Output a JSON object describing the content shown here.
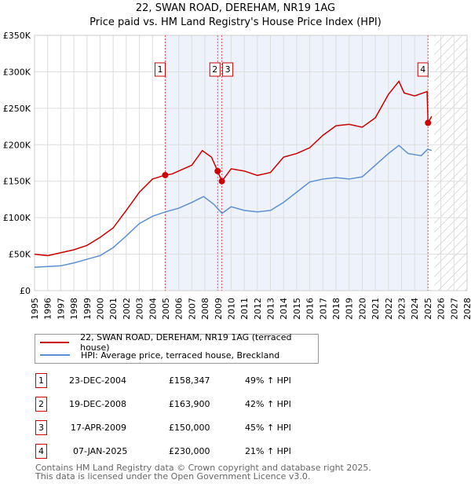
{
  "title": "22, SWAN ROAD, DEREHAM, NR19 1AG",
  "subtitle": "Price paid vs. HM Land Registry's House Price Index (HPI)",
  "chart_data": {
    "type": "line",
    "xlim": [
      1995,
      2028
    ],
    "ylim": [
      0,
      350000
    ],
    "yticks": [
      0,
      50000,
      100000,
      150000,
      200000,
      250000,
      300000,
      350000
    ],
    "ytick_labels": [
      "£0",
      "£50K",
      "£100K",
      "£150K",
      "£200K",
      "£250K",
      "£300K",
      "£350K"
    ],
    "xticks": [
      1995,
      1996,
      1997,
      1998,
      1999,
      2000,
      2001,
      2002,
      2003,
      2004,
      2005,
      2006,
      2007,
      2008,
      2009,
      2010,
      2011,
      2012,
      2013,
      2014,
      2015,
      2016,
      2017,
      2018,
      2019,
      2020,
      2021,
      2022,
      2023,
      2024,
      2025,
      2026,
      2027,
      2028
    ],
    "forecast_start": 2025.5,
    "colors": {
      "property": "#cc0000",
      "hpi": "#5b8fd4",
      "shade": "#eef2fb"
    },
    "series": [
      {
        "name": "22, SWAN ROAD, DEREHAM, NR19 1AG (terraced house)",
        "color": "#cc0000",
        "x": [
          1995,
          1996,
          1997,
          1998,
          1999,
          2000,
          2001,
          2002,
          2003,
          2004,
          2004.97,
          2005.5,
          2006,
          2007,
          2007.8,
          2008.5,
          2008.97,
          2009.29,
          2009.5,
          2010,
          2011,
          2012,
          2013,
          2014,
          2015,
          2016,
          2017,
          2018,
          2019,
          2020,
          2021,
          2022,
          2022.8,
          2023.2,
          2024,
          2024.95,
          2025.02,
          2025.3
        ],
        "y": [
          50000,
          48000,
          52000,
          56000,
          62000,
          73000,
          86000,
          110000,
          135000,
          153000,
          158347,
          160000,
          164000,
          172000,
          192000,
          183000,
          163900,
          150000,
          155000,
          167000,
          164000,
          158000,
          162000,
          183000,
          188000,
          196000,
          213000,
          226000,
          228000,
          224000,
          237000,
          269000,
          287000,
          271000,
          267000,
          273000,
          230000,
          239000
        ]
      },
      {
        "name": "HPI: Average price, terraced house, Breckland",
        "color": "#5b8fd4",
        "x": [
          1995,
          1997,
          1998,
          1999,
          2000,
          2001,
          2002,
          2003,
          2004,
          2005,
          2006,
          2007,
          2007.9,
          2008.7,
          2009.3,
          2010,
          2011,
          2012,
          2013,
          2014,
          2015,
          2016,
          2017,
          2018,
          2019,
          2020,
          2021,
          2022,
          2022.8,
          2023.5,
          2024.5,
          2025,
          2025.3
        ],
        "y": [
          32000,
          34000,
          38000,
          43000,
          48000,
          59000,
          75000,
          92000,
          102000,
          108000,
          113000,
          121000,
          129000,
          118000,
          106000,
          115000,
          110000,
          108000,
          110000,
          121000,
          135000,
          149000,
          153000,
          155000,
          153000,
          156000,
          172000,
          188000,
          199000,
          188000,
          185000,
          194000,
          192000
        ]
      }
    ],
    "sales": [
      {
        "n": "1",
        "x": 2004.97,
        "price": 158347,
        "date": "23-DEC-2004",
        "price_label": "£158,347",
        "hpi": "49% ↑ HPI"
      },
      {
        "n": "2",
        "x": 2008.97,
        "price": 163900,
        "date": "19-DEC-2008",
        "price_label": "£163,900",
        "hpi": "42% ↑ HPI"
      },
      {
        "n": "3",
        "x": 2009.29,
        "price": 150000,
        "date": "17-APR-2009",
        "price_label": "£150,000",
        "hpi": "45% ↑ HPI"
      },
      {
        "n": "4",
        "x": 2025.02,
        "price": 230000,
        "date": "07-JAN-2025",
        "price_label": "£230,000",
        "hpi": "21% ↑ HPI"
      }
    ]
  },
  "legend": {
    "property": "22, SWAN ROAD, DEREHAM, NR19 1AG (terraced house)",
    "hpi": "HPI: Average price, terraced house, Breckland"
  },
  "footer": [
    "Contains HM Land Registry data © Crown copyright and database right 2025.",
    "This data is licensed under the Open Government Licence v3.0."
  ]
}
